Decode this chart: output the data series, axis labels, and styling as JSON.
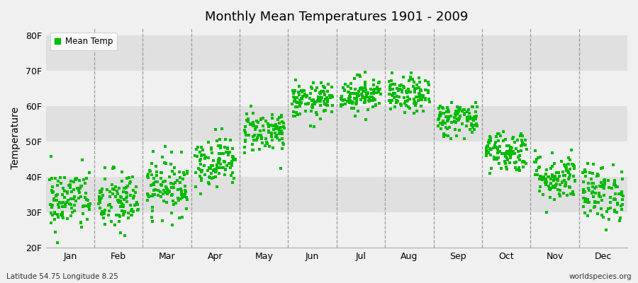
{
  "title": "Monthly Mean Temperatures 1901 - 2009",
  "ylabel": "Temperature",
  "background_color": "#f0f0f0",
  "band_color_dark": "#e0e0e0",
  "band_color_light": "#f0f0f0",
  "dot_color": "#00bb00",
  "legend_label": "Mean Temp",
  "bottom_left_text": "Latitude 54.75 Longitude 8.25",
  "bottom_right_text": "worldspecies.org",
  "ylim": [
    20,
    82
  ],
  "yticks": [
    20,
    30,
    40,
    50,
    60,
    70,
    80
  ],
  "ytick_labels": [
    "20F",
    "30F",
    "40F",
    "50F",
    "60F",
    "70F",
    "80F"
  ],
  "months": [
    "Jan",
    "Feb",
    "Mar",
    "Apr",
    "May",
    "Jun",
    "Jul",
    "Aug",
    "Sep",
    "Oct",
    "Nov",
    "Dec"
  ],
  "xlim": [
    0,
    12
  ],
  "num_years": 109,
  "monthly_mean_temps": [
    33.5,
    33.0,
    37.5,
    44.5,
    53.0,
    61.5,
    63.5,
    63.0,
    56.5,
    47.5,
    40.0,
    35.5
  ],
  "monthly_std_temps": [
    4.5,
    4.5,
    4.0,
    3.5,
    3.0,
    2.5,
    2.5,
    2.5,
    2.5,
    3.0,
    3.5,
    4.0
  ]
}
